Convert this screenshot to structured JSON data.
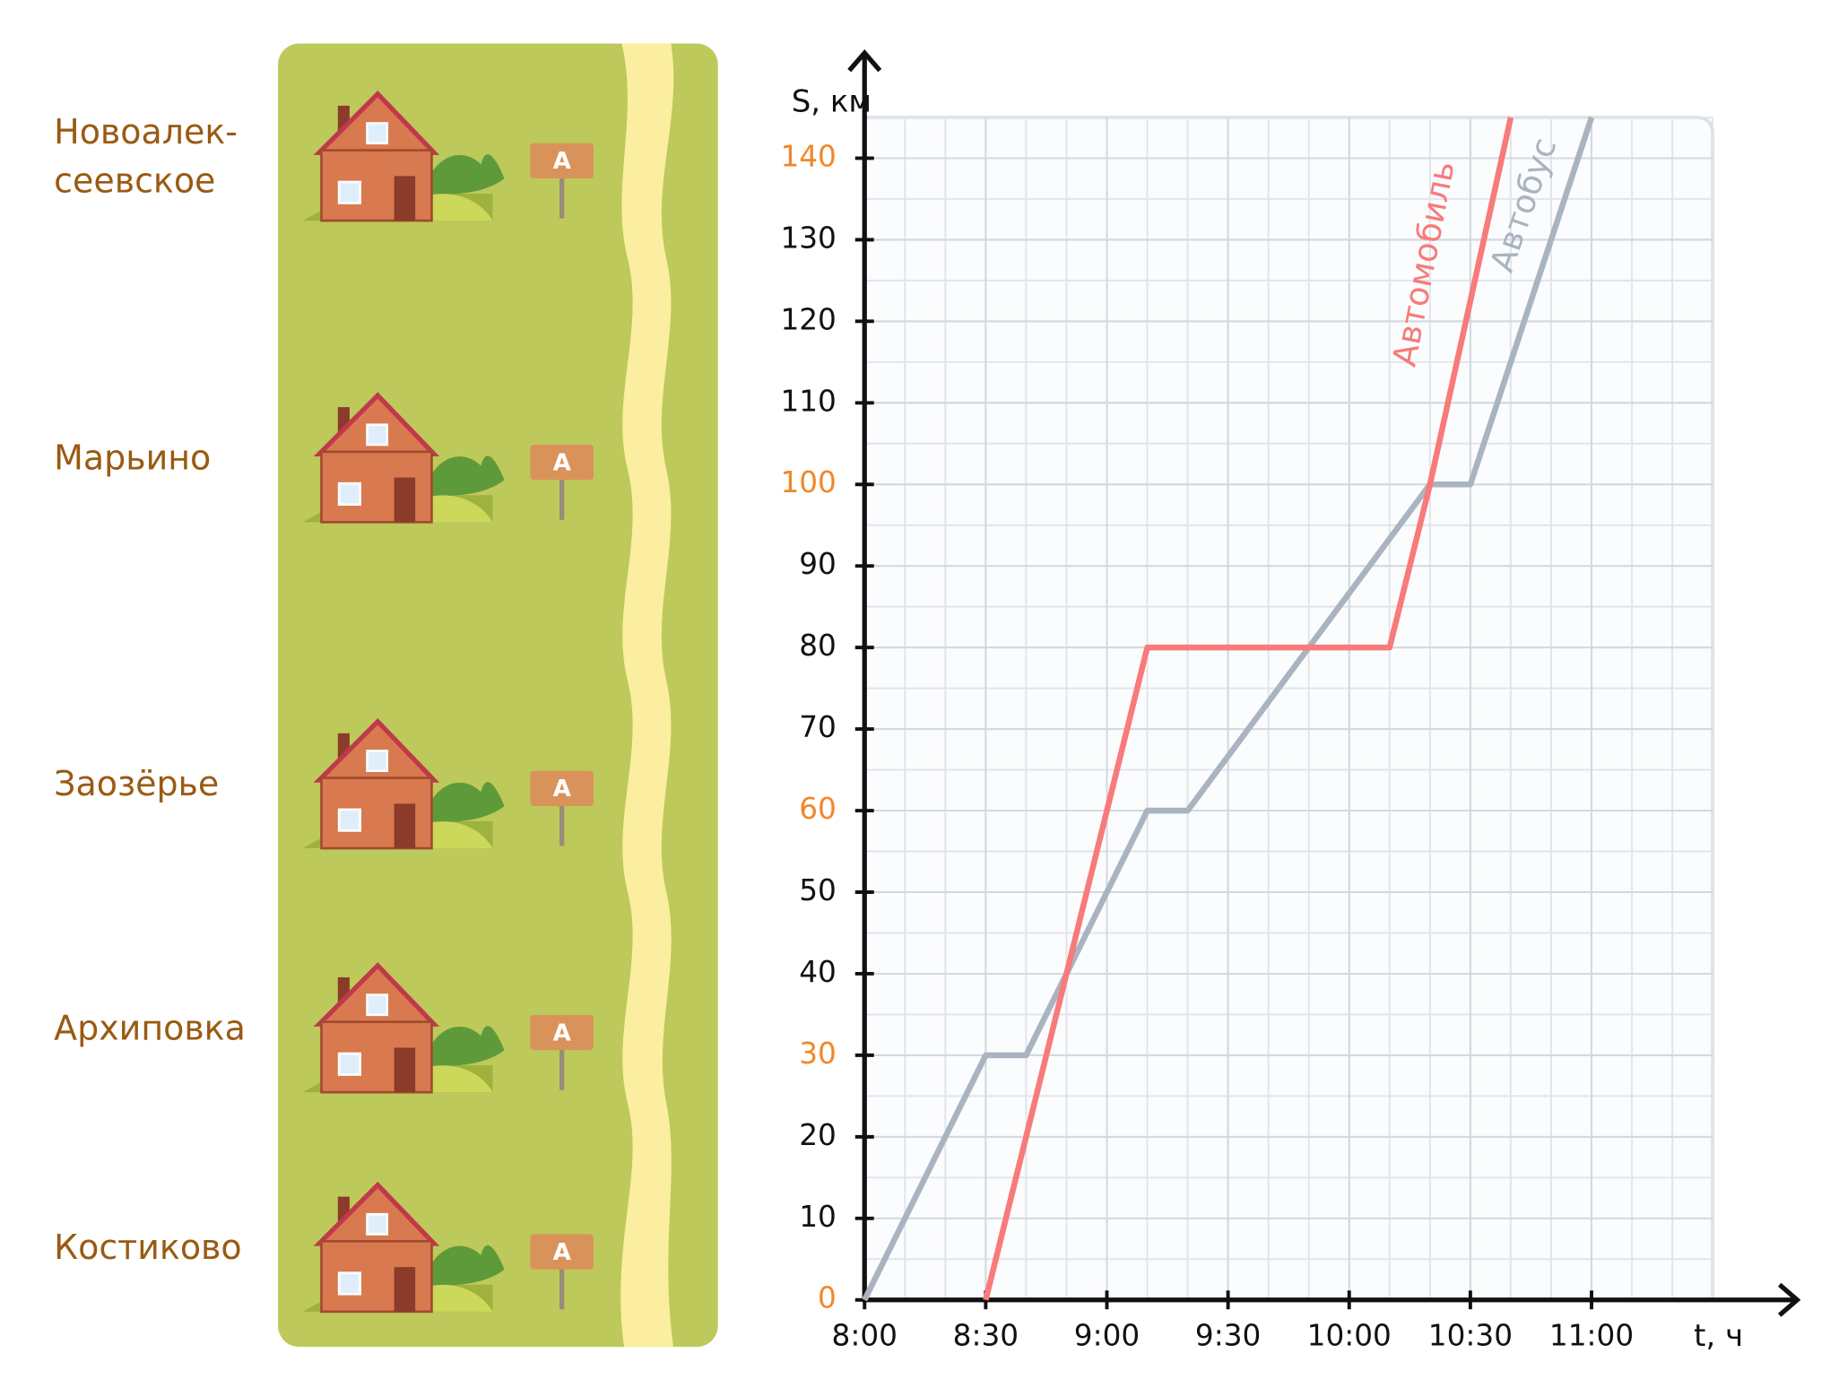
{
  "villages": [
    [
      "Новоалек-",
      "сеевское"
    ],
    [
      "Марьино"
    ],
    [
      "Заозёрье"
    ],
    [
      "Архиповка"
    ],
    [
      "Костиково"
    ]
  ],
  "sign_label": "А",
  "chart_data": {
    "type": "line",
    "y_label": "S, км",
    "x_label": "t, ч",
    "xlim": [
      8,
      11.5
    ],
    "ylim": [
      0,
      145
    ],
    "xticks": [
      {
        "value": 8,
        "label": "8:00"
      },
      {
        "value": 8.5,
        "label": "8:30"
      },
      {
        "value": 9,
        "label": "9:00"
      },
      {
        "value": 9.5,
        "label": "9:30"
      },
      {
        "value": 10,
        "label": "10:00"
      },
      {
        "value": 10.5,
        "label": "10:30"
      },
      {
        "value": 11,
        "label": "11:00"
      }
    ],
    "yticks": [
      0,
      10,
      20,
      30,
      40,
      50,
      60,
      70,
      80,
      90,
      100,
      110,
      120,
      130,
      140
    ],
    "ytick_colors": [
      "#f0882a",
      "#111",
      "#111",
      "#f0882a",
      "#111",
      "#111",
      "#f0882a",
      "#111",
      "#111",
      "#111",
      "#f0882a",
      "#111",
      "#111",
      "#111",
      "#f0882a"
    ],
    "grid": true,
    "series": [
      {
        "name": "Автобус",
        "color": "#a9b4c0",
        "x": [
          8,
          8.5,
          8.6667,
          9.1667,
          9.3333,
          10.3333,
          10.5,
          11
        ],
        "values": [
          0,
          30,
          30,
          60,
          60,
          100,
          100,
          145
        ]
      },
      {
        "name": "Автомобиль",
        "color": "#f87a7a",
        "x": [
          8.5,
          9.1667,
          10.1667,
          10.3333,
          10.6667
        ],
        "values": [
          0,
          80,
          80,
          100,
          145
        ]
      }
    ]
  }
}
